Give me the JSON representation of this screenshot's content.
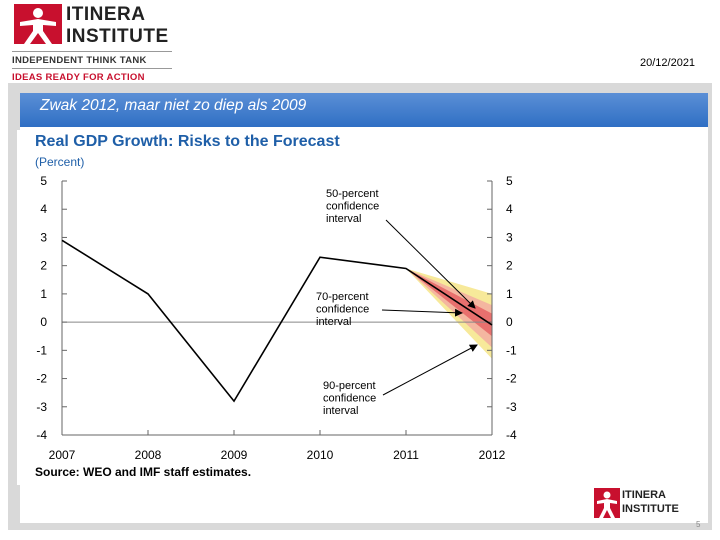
{
  "header": {
    "logo_line1": "ITINERA",
    "logo_line2": "INSTITUTE",
    "tagline1": "INDEPENDENT THINK TANK",
    "tagline2": "IDEAS READY FOR ACTION",
    "date": "20/12/2021"
  },
  "slide": {
    "title": "Zwak 2012, maar niet zo diep als 2009"
  },
  "footer": {
    "logo_line1": "ITINERA",
    "logo_line2": "INSTITUTE",
    "page_number": "5"
  },
  "colors": {
    "brand_red": "#c8102e",
    "title_bar": "#3a78c8",
    "chart_title": "#1f5fa8",
    "band_90": "#f7e99a",
    "band_70": "#f4b6a0",
    "band_50": "#e8706e"
  },
  "chart_data": {
    "type": "line",
    "title": "Real GDP Growth: Risks to the Forecast",
    "unit_label": "(Percent)",
    "source": "Source: WEO and IMF staff estimates.",
    "x": [
      2007,
      2008,
      2009,
      2010,
      2011,
      2012
    ],
    "x_tick_labels": [
      "2007",
      "2008",
      "2009",
      "2010",
      "2011",
      "2012"
    ],
    "y_tick_labels": [
      "5",
      "4",
      "3",
      "2",
      "1",
      "0",
      "-1",
      "-2",
      "-3",
      "-4"
    ],
    "ylim": [
      -4,
      5
    ],
    "series": [
      {
        "name": "Real GDP growth",
        "x": [
          2007,
          2008,
          2009,
          2010,
          2011,
          2012
        ],
        "values": [
          2.9,
          1.0,
          -2.8,
          2.3,
          1.9,
          -0.1
        ]
      }
    ],
    "fan": {
      "start_x": 2011,
      "start_y": 1.9,
      "end_x": 2012,
      "bands": [
        {
          "name": "90-percent",
          "low": -1.3,
          "high": 1.0
        },
        {
          "name": "70-percent",
          "low": -0.9,
          "high": 0.6
        },
        {
          "name": "50-percent",
          "low": -0.5,
          "high": 0.3
        }
      ]
    },
    "annotations": [
      {
        "lines": [
          "50-percent",
          "confidence",
          "interval"
        ]
      },
      {
        "lines": [
          "70-percent",
          "confidence",
          "interval"
        ]
      },
      {
        "lines": [
          "90-percent",
          "confidence",
          "interval"
        ]
      }
    ]
  }
}
